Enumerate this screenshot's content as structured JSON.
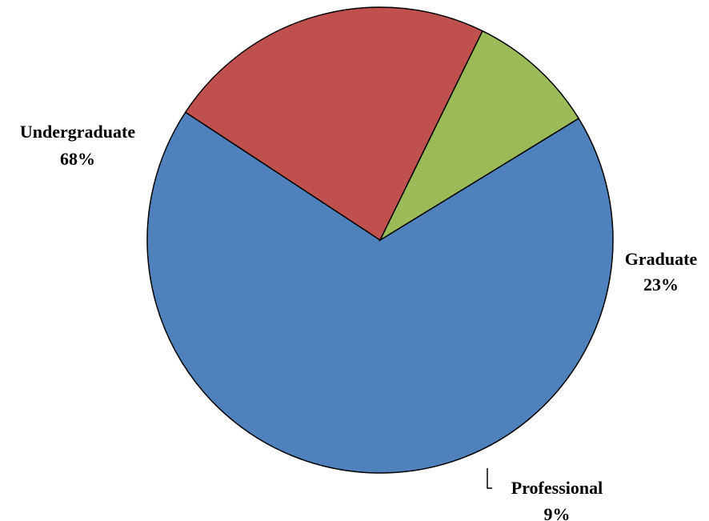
{
  "chart_data": {
    "type": "pie",
    "title": "",
    "slices": [
      {
        "name": "Undergraduate",
        "value": 68,
        "label": "Undergraduate",
        "pct_label": "68%",
        "color": "#4F81BD"
      },
      {
        "name": "Graduate",
        "value": 23,
        "label": "Graduate",
        "pct_label": "23%",
        "color": "#C0504D"
      },
      {
        "name": "Professional",
        "value": 9,
        "label": "Professional",
        "pct_label": "9%",
        "color": "#9BBB59"
      }
    ],
    "legend": "none",
    "data_labels": "outside-with-category-and-percent"
  }
}
